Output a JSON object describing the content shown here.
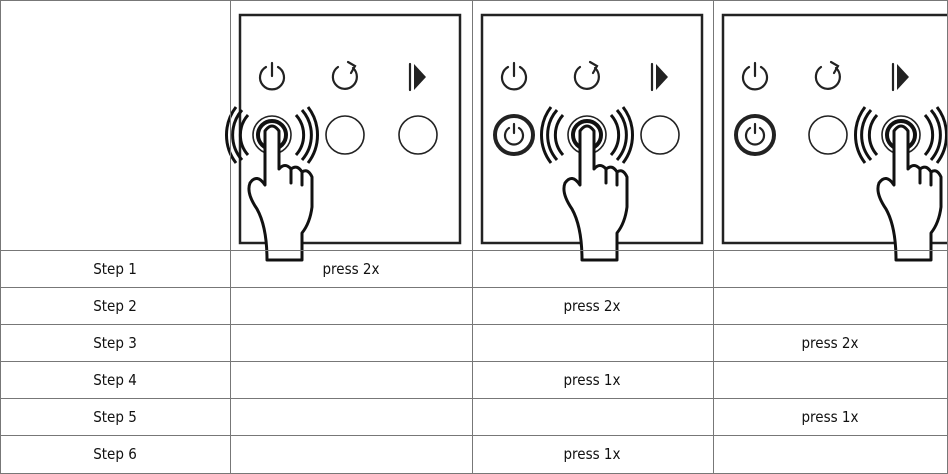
{
  "table": {
    "rows": [
      [
        "Step 1",
        "press 2x",
        null,
        null
      ],
      [
        "Step 2",
        null,
        "press 2x",
        null
      ],
      [
        "Step 3",
        null,
        null,
        "press 2x"
      ],
      [
        "Step 4",
        null,
        "press 1x",
        null
      ],
      [
        "Step 5",
        null,
        null,
        "press 1x"
      ],
      [
        "Step 6",
        null,
        "press 1x",
        null
      ]
    ]
  }
}
